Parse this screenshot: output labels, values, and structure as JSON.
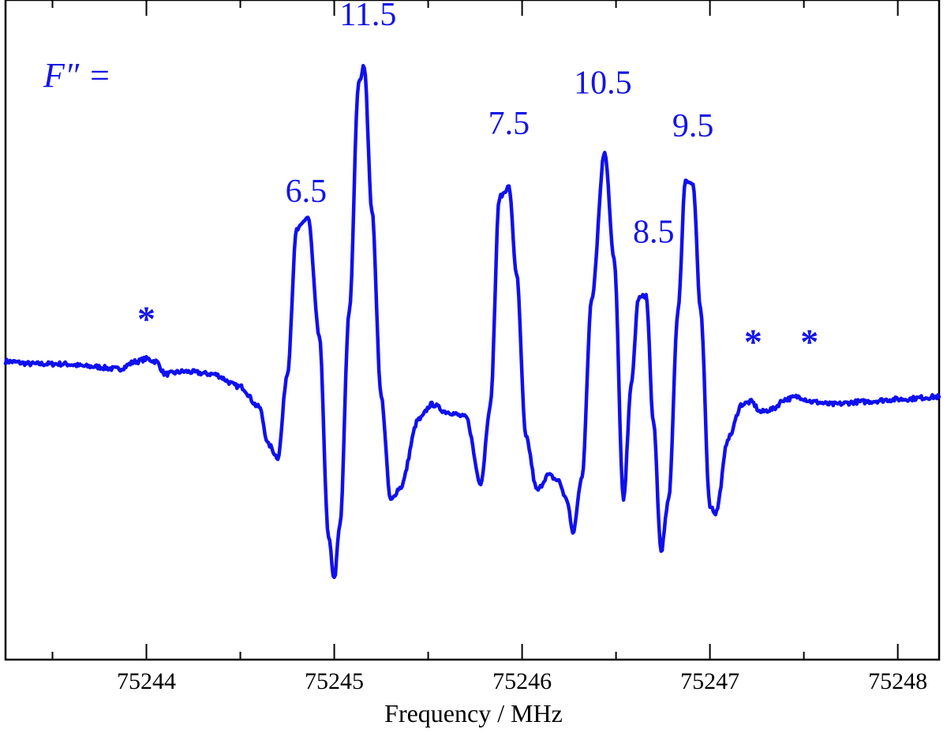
{
  "chart_data": {
    "type": "line",
    "title": "",
    "xlabel": "Frequency / MHz",
    "ylabel": "",
    "xlim": [
      75243.25,
      75248.22
    ],
    "ylim": [
      -1.18,
      1.43
    ],
    "x_ticks": [
      75244,
      75245,
      75246,
      75247,
      75248
    ],
    "x_tick_labels": [
      "75244",
      "75245",
      "75246",
      "75247",
      "75248"
    ],
    "x_minor_step": 0.5,
    "grid": false,
    "line_color": "#1010ee",
    "label_color": "#1414e6",
    "series_label": "F″ =",
    "peak_labels": [
      "6.5",
      "11.5",
      "7.5",
      "10.5",
      "8.5",
      "9.5"
    ],
    "peak_label_positions": [
      [
        75244.85,
        0.63
      ],
      [
        75245.18,
        1.33
      ],
      [
        75245.93,
        0.9
      ],
      [
        75246.43,
        1.06
      ],
      [
        75246.7,
        0.47
      ],
      [
        75246.91,
        0.89
      ]
    ],
    "markers": [
      "*",
      "*",
      "*"
    ],
    "marker_positions": [
      [
        75244.0,
        0.12
      ],
      [
        75247.23,
        0.03
      ],
      [
        75247.53,
        0.03
      ]
    ],
    "series": [
      {
        "x": [
          75243.25,
          75243.4,
          75243.55,
          75243.7,
          75243.85,
          75243.95,
          75244.0,
          75244.05,
          75244.1,
          75244.2,
          75244.35,
          75244.5,
          75244.6,
          75244.65,
          75244.7,
          75244.75,
          75244.8,
          75244.86,
          75244.92,
          75244.97,
          75245.0,
          75245.03,
          75245.08,
          75245.13,
          75245.16,
          75245.2,
          75245.25,
          75245.3,
          75245.35,
          75245.45,
          75245.52,
          75245.6,
          75245.7,
          75245.78,
          75245.83,
          75245.88,
          75245.93,
          75245.97,
          75246.02,
          75246.08,
          75246.14,
          75246.19,
          75246.24,
          75246.27,
          75246.32,
          75246.37,
          75246.44,
          75246.49,
          75246.54,
          75246.58,
          75246.62,
          75246.66,
          75246.7,
          75246.74,
          75246.78,
          75246.83,
          75246.87,
          75246.91,
          75246.95,
          75247.0,
          75247.03,
          75247.1,
          75247.17,
          75247.22,
          75247.27,
          75247.33,
          75247.4,
          75247.47,
          75247.55,
          75247.65,
          75247.8,
          75248.0,
          75248.22
        ],
        "y": [
          0.0,
          -0.01,
          -0.01,
          -0.02,
          -0.03,
          0.0,
          0.01,
          0.0,
          -0.05,
          -0.04,
          -0.05,
          -0.1,
          -0.18,
          -0.33,
          -0.38,
          -0.05,
          0.52,
          0.57,
          0.1,
          -0.7,
          -0.86,
          -0.65,
          0.2,
          1.1,
          1.17,
          0.6,
          -0.14,
          -0.55,
          -0.5,
          -0.23,
          -0.17,
          -0.2,
          -0.22,
          -0.48,
          -0.18,
          0.65,
          0.69,
          0.35,
          -0.3,
          -0.51,
          -0.45,
          -0.47,
          -0.55,
          -0.68,
          -0.45,
          0.25,
          0.83,
          0.4,
          -0.55,
          -0.1,
          0.25,
          0.26,
          -0.25,
          -0.75,
          -0.55,
          0.2,
          0.72,
          0.7,
          0.2,
          -0.57,
          -0.6,
          -0.3,
          -0.17,
          -0.16,
          -0.2,
          -0.19,
          -0.15,
          -0.14,
          -0.16,
          -0.17,
          -0.16,
          -0.15,
          -0.14
        ]
      }
    ]
  }
}
